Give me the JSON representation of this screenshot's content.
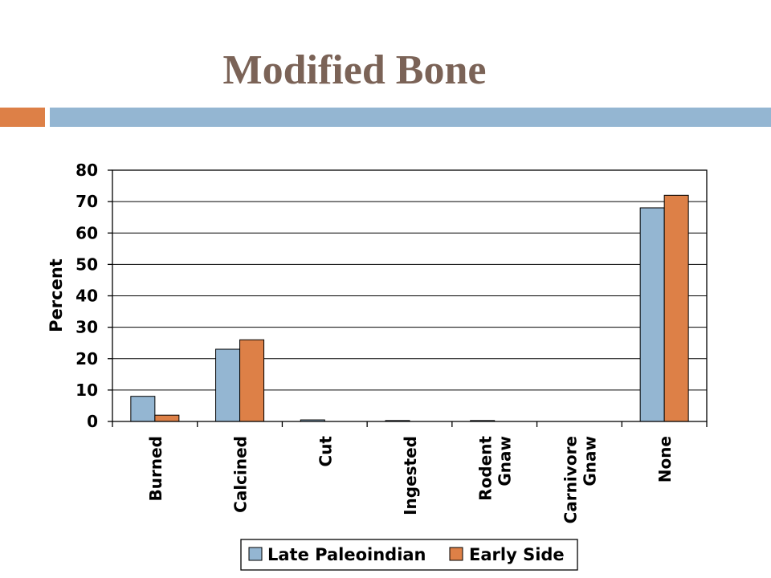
{
  "slide": {
    "title": "Modified Bone",
    "accent_left_color": "#dd8047",
    "accent_right_color": "#94b6d2"
  },
  "chart_data": {
    "type": "bar",
    "title": "",
    "xlabel": "",
    "ylabel": "Percent",
    "ylim": [
      0,
      80
    ],
    "yticks": [
      0,
      10,
      20,
      30,
      40,
      50,
      60,
      70,
      80
    ],
    "grid": true,
    "legend": "bottom",
    "categories": [
      [
        "Burned"
      ],
      [
        "Calcined"
      ],
      [
        "Cut"
      ],
      [
        "Ingested"
      ],
      [
        "Rodent",
        "Gnaw"
      ],
      [
        "Carnivore",
        "Gnaw"
      ],
      [
        "None"
      ]
    ],
    "series": [
      {
        "name": "Late Paleoindian",
        "color": "#94b6d2",
        "values": [
          8,
          23,
          0.5,
          0.3,
          0.3,
          0,
          68
        ]
      },
      {
        "name": "Early Side",
        "color": "#dd8047",
        "values": [
          2,
          26,
          0,
          0,
          0,
          0,
          72
        ]
      }
    ]
  }
}
